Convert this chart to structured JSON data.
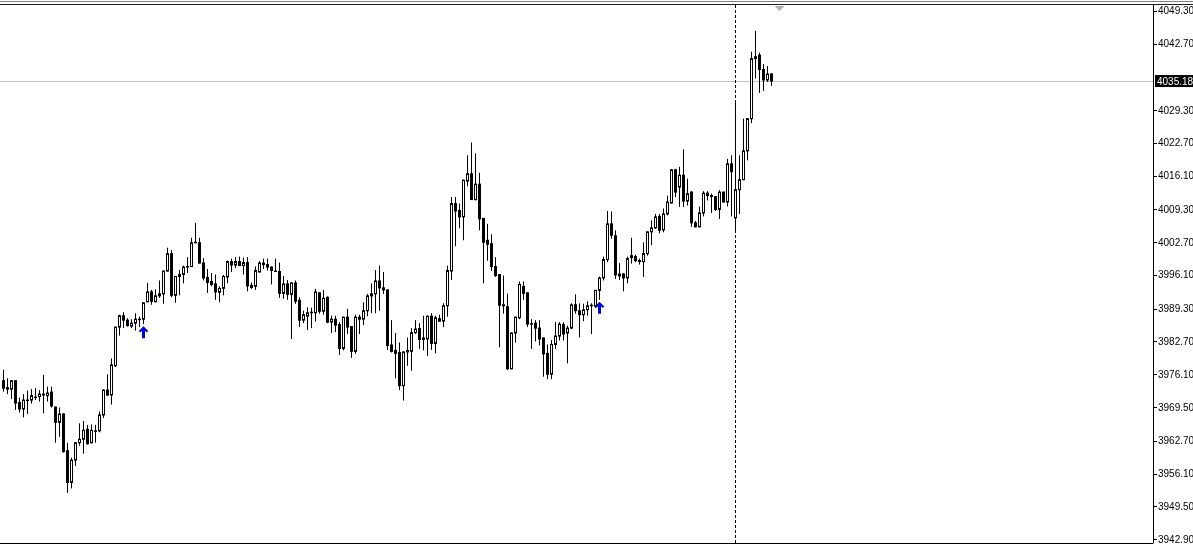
{
  "chart_data": {
    "type": "candlestick",
    "categories": [
      null,
      null,
      null,
      null,
      null,
      null,
      null,
      null,
      null,
      null,
      null,
      null,
      null,
      null,
      null,
      null,
      null,
      null,
      null,
      null,
      null,
      null,
      null,
      null,
      null,
      null,
      null,
      null,
      null,
      null,
      null,
      null,
      null,
      null,
      null,
      null,
      null,
      null,
      null,
      null,
      null,
      null,
      null,
      null,
      null,
      null,
      null,
      null,
      null,
      null,
      null,
      null,
      null,
      null,
      null,
      null,
      null,
      null,
      null,
      null,
      null,
      null,
      null,
      null,
      null,
      null,
      null,
      null,
      null,
      null,
      null,
      null,
      null,
      null,
      null,
      null,
      null,
      null,
      null,
      null,
      null,
      null,
      null,
      null,
      null,
      null,
      null,
      null,
      null,
      null,
      null,
      null,
      null,
      null,
      null,
      null,
      null,
      null,
      null,
      null,
      null,
      null,
      null,
      null,
      null,
      null,
      null,
      null,
      null,
      null,
      null,
      null,
      null,
      null,
      null,
      null,
      null,
      null,
      null,
      null,
      null,
      null,
      null,
      null,
      null,
      null,
      null,
      null,
      null,
      null,
      null,
      null,
      null,
      null,
      null,
      null,
      null,
      null,
      null,
      null,
      null,
      null,
      null,
      null,
      null,
      null,
      null,
      null,
      null,
      null,
      null,
      null,
      null,
      null,
      null,
      null,
      null,
      null,
      null,
      null,
      null,
      null,
      null,
      null,
      null,
      null,
      null,
      null,
      null,
      null,
      null,
      null,
      null,
      null,
      null,
      null,
      null,
      null,
      null,
      null,
      null,
      null,
      null,
      null,
      null,
      null,
      null,
      null,
      null,
      null,
      null,
      null,
      null,
      null,
      null,
      null,
      null,
      null,
      null,
      null,
      null,
      null,
      null,
      null,
      null,
      null,
      null,
      null,
      null,
      null,
      null,
      null,
      null,
      null,
      null,
      null,
      null,
      null,
      null,
      null,
      null,
      null,
      null,
      null,
      null,
      null,
      null,
      null,
      null,
      null,
      null,
      null,
      null,
      null,
      null,
      null,
      null,
      null,
      null,
      null,
      null,
      null,
      null,
      null,
      null,
      null,
      null,
      null,
      null,
      null,
      null,
      null,
      null,
      null,
      null,
      null,
      null,
      null,
      null,
      null,
      null,
      null,
      null,
      null,
      null,
      null,
      null,
      null,
      null,
      null,
      null,
      null,
      null,
      null,
      null,
      null,
      null,
      null,
      null,
      null,
      null,
      null,
      null,
      null,
      null,
      null,
      null,
      null
    ],
    "ohlc": [
      [
        3974.8,
        3977.0,
        3972.6,
        3973.3
      ],
      [
        3973.4,
        3975.3,
        3972.1,
        3973.1
      ],
      [
        3973.1,
        3974.9,
        3971.1,
        3974.8
      ],
      [
        3974.8,
        3974.9,
        3968.9,
        3970.3
      ],
      [
        3970.4,
        3971.4,
        3968.4,
        3969.1
      ],
      [
        3969.1,
        3972.1,
        3967.4,
        3970.9
      ],
      [
        3970.8,
        3972.8,
        3968.1,
        3970.9
      ],
      [
        3970.9,
        3973.1,
        3970.2,
        3971.8
      ],
      [
        3971.5,
        3973.3,
        3970.9,
        3971.4
      ],
      [
        3971.6,
        3972.9,
        3970.6,
        3972.1
      ],
      [
        3971.9,
        3976.0,
        3968.2,
        3972.1
      ],
      [
        3971.8,
        3973.6,
        3970.6,
        3972.3
      ],
      [
        3972.5,
        3973.6,
        3969.4,
        3969.7
      ],
      [
        3969.5,
        3969.6,
        3962.3,
        3966.4
      ],
      [
        3966.4,
        3969.4,
        3963.5,
        3968.1
      ],
      [
        3968.1,
        3968.2,
        3960.3,
        3960.5
      ],
      [
        3960.7,
        3962.3,
        3952.2,
        3954.3
      ],
      [
        3954.3,
        3959.3,
        3953.1,
        3958.8
      ],
      [
        3958.8,
        3962.4,
        3957.6,
        3962.3
      ],
      [
        3962.3,
        3966.2,
        3961.7,
        3963.0
      ],
      [
        3963.0,
        3966.7,
        3960.1,
        3964.8
      ],
      [
        3965.0,
        3965.9,
        3961.9,
        3962.1
      ],
      [
        3962.3,
        3966.0,
        3962.2,
        3964.8
      ],
      [
        3964.6,
        3965.9,
        3962.3,
        3964.7
      ],
      [
        3964.7,
        3968.6,
        3964.4,
        3967.9
      ],
      [
        3967.9,
        3973.1,
        3967.3,
        3972.9
      ],
      [
        3972.9,
        3976.1,
        3971.8,
        3971.9
      ],
      [
        3971.9,
        3979.3,
        3970.0,
        3978.0
      ],
      [
        3977.8,
        3985.7,
        3977.6,
        3985.6
      ],
      [
        3985.6,
        3988.1,
        3983.9,
        3987.9
      ],
      [
        3987.9,
        3988.6,
        3985.4,
        3987.0
      ],
      [
        3987.0,
        3987.4,
        3985.7,
        3985.9
      ],
      [
        3985.8,
        3987.2,
        3985.4,
        3986.4
      ],
      [
        3986.4,
        3988.4,
        3984.9,
        3987.2
      ],
      [
        3987.1,
        3987.7,
        3985.6,
        3987.2
      ],
      [
        3987.2,
        3990.6,
        3986.2,
        3990.5
      ],
      [
        3990.7,
        3994.5,
        3990.6,
        3992.7
      ],
      [
        3992.7,
        3993.1,
        3990.1,
        3990.8
      ],
      [
        3990.7,
        3993.2,
        3990.6,
        3991.9
      ],
      [
        3991.9,
        3995.0,
        3991.5,
        3992.3
      ],
      [
        3992.3,
        3997.0,
        3990.3,
        3996.9
      ],
      [
        3996.9,
        4001.6,
        3996.8,
        4000.4
      ],
      [
        4000.4,
        4001.1,
        3991.6,
        3992.0
      ],
      [
        3992.0,
        3995.9,
        3990.5,
        3995.8
      ],
      [
        3995.8,
        3997.1,
        3992.0,
        3996.2
      ],
      [
        3996.2,
        3998.0,
        3994.4,
        3997.7
      ],
      [
        3997.7,
        3999.7,
        3996.5,
        3997.8
      ],
      [
        3997.8,
        4003.6,
        3997.7,
        4002.6
      ],
      [
        4002.6,
        4006.6,
        4002.5,
        4002.7
      ],
      [
        4002.6,
        4003.6,
        3998.4,
        3998.5
      ],
      [
        3998.5,
        3999.5,
        3995.0,
        3995.5
      ],
      [
        3995.6,
        3997.3,
        3992.5,
        3994.6
      ],
      [
        3994.8,
        3996.5,
        3993.8,
        3994.2
      ],
      [
        3994.3,
        3996.2,
        3991.1,
        3992.7
      ],
      [
        3992.6,
        3993.8,
        3990.6,
        3993.4
      ],
      [
        3993.4,
        3996.1,
        3992.0,
        3995.8
      ],
      [
        3995.7,
        3999.0,
        3994.4,
        3998.8
      ],
      [
        3998.8,
        3999.4,
        3996.7,
        3998.1
      ],
      [
        3998.1,
        3999.7,
        3997.5,
        3998.8
      ],
      [
        3998.8,
        3999.8,
        3997.9,
        3998.0
      ],
      [
        3998.0,
        3999.6,
        3996.2,
        3998.6
      ],
      [
        3998.6,
        3999.7,
        3992.8,
        3993.9
      ],
      [
        3994.0,
        3994.6,
        3993.3,
        3993.6
      ],
      [
        3993.8,
        3997.8,
        3993.1,
        3997.0
      ],
      [
        3996.7,
        3998.9,
        3996.6,
        3998.5
      ],
      [
        3998.2,
        3999.4,
        3997.3,
        3998.5
      ],
      [
        3998.2,
        3999.4,
        3997.0,
        3997.7
      ],
      [
        3997.7,
        3997.8,
        3994.2,
        3997.0
      ],
      [
        3996.8,
        3999.4,
        3996.7,
        3996.9
      ],
      [
        3996.8,
        3998.6,
        3991.5,
        3992.4
      ],
      [
        3992.4,
        3995.9,
        3991.3,
        3994.3
      ],
      [
        3994.3,
        3995.1,
        3991.1,
        3992.2
      ],
      [
        3992.2,
        3994.6,
        3983.2,
        3994.5
      ],
      [
        3994.5,
        3995.0,
        3990.3,
        3990.8
      ],
      [
        3991.0,
        3991.6,
        3985.6,
        3987.0
      ],
      [
        3987.0,
        3988.9,
        3986.4,
        3988.1
      ],
      [
        3987.8,
        3989.6,
        3985.0,
        3988.5
      ],
      [
        3988.5,
        3989.5,
        3985.4,
        3988.6
      ],
      [
        3988.5,
        3993.3,
        3986.7,
        3992.7
      ],
      [
        3992.5,
        3992.6,
        3988.3,
        3988.8
      ],
      [
        3988.8,
        3993.1,
        3988.1,
        3991.4
      ],
      [
        3991.6,
        3991.8,
        3986.4,
        3986.6
      ],
      [
        3986.6,
        3987.9,
        3984.4,
        3987.2
      ],
      [
        3987.2,
        3987.9,
        3984.6,
        3986.0
      ],
      [
        3986.1,
        3986.6,
        3980.0,
        3981.3
      ],
      [
        3981.3,
        3987.7,
        3980.9,
        3987.6
      ],
      [
        3987.6,
        3989.3,
        3984.2,
        3985.6
      ],
      [
        3985.7,
        3985.8,
        3979.4,
        3980.7
      ],
      [
        3980.7,
        3988.1,
        3980.2,
        3987.6
      ],
      [
        3987.6,
        3988.1,
        3984.2,
        3987.2
      ],
      [
        3987.2,
        3990.6,
        3986.0,
        3988.9
      ],
      [
        3988.9,
        3992.3,
        3987.8,
        3991.9
      ],
      [
        3991.9,
        3994.4,
        3988.4,
        3992.3
      ],
      [
        3992.3,
        3997.1,
        3988.4,
        3994.9
      ],
      [
        3994.9,
        3998.0,
        3988.9,
        3993.5
      ],
      [
        3993.5,
        3996.7,
        3992.3,
        3993.1
      ],
      [
        3993.1,
        3993.2,
        3981.0,
        3981.9
      ],
      [
        3982.0,
        3987.0,
        3980.5,
        3980.7
      ],
      [
        3980.9,
        3984.4,
        3975.3,
        3980.3
      ],
      [
        3980.5,
        3982.5,
        3972.9,
        3973.8
      ],
      [
        3973.8,
        3980.7,
        3970.8,
        3980.6
      ],
      [
        3980.6,
        3983.5,
        3977.8,
        3980.9
      ],
      [
        3980.7,
        3985.4,
        3976.8,
        3984.5
      ],
      [
        3984.5,
        3987.0,
        3984.2,
        3985.2
      ],
      [
        3985.3,
        3986.4,
        3981.2,
        3983.1
      ],
      [
        3983.4,
        3987.9,
        3980.9,
        3983.1
      ],
      [
        3983.2,
        3987.9,
        3979.8,
        3987.8
      ],
      [
        3987.8,
        3988.4,
        3981.0,
        3982.3
      ],
      [
        3982.3,
        3987.9,
        3980.3,
        3987.5
      ],
      [
        3987.3,
        3988.1,
        3986.7,
        3986.8
      ],
      [
        3986.8,
        3990.4,
        3985.6,
        3989.9
      ],
      [
        3989.9,
        3998.0,
        3987.7,
        3997.0
      ],
      [
        3996.9,
        4011.8,
        3995.1,
        4010.5
      ],
      [
        4010.5,
        4011.8,
        4001.9,
        4009.0
      ],
      [
        4009.1,
        4010.5,
        4005.5,
        4007.8
      ],
      [
        4007.8,
        4015.3,
        4003.1,
        4015.2
      ],
      [
        4015.0,
        4020.2,
        4014.0,
        4016.5
      ],
      [
        4016.5,
        4022.8,
        4011.2,
        4011.3
      ],
      [
        4011.3,
        4020.6,
        4011.1,
        4014.4
      ],
      [
        4014.4,
        4016.7,
        4005.1,
        4007.4
      ],
      [
        4007.5,
        4007.6,
        3994.4,
        4002.7
      ],
      [
        4003.1,
        4006.4,
        3999.0,
        4002.3
      ],
      [
        4002.4,
        4004.3,
        3996.9,
        3997.8
      ],
      [
        3997.8,
        3999.7,
        3995.7,
        3996.0
      ],
      [
        3996.2,
        3996.3,
        3981.5,
        3990.0
      ],
      [
        3989.9,
        3996.0,
        3988.3,
        3990.1
      ],
      [
        3989.7,
        3992.3,
        3977.0,
        3977.2
      ],
      [
        3977.2,
        3984.5,
        3977.1,
        3984.4
      ],
      [
        3984.4,
        3987.7,
        3982.5,
        3987.6
      ],
      [
        3987.5,
        3994.8,
        3987.2,
        3994.2
      ],
      [
        3993.8,
        3994.8,
        3991.1,
        3992.4
      ],
      [
        3992.5,
        3992.6,
        3985.6,
        3986.2
      ],
      [
        3986.2,
        3987.2,
        3981.2,
        3986.3
      ],
      [
        3986.4,
        3987.0,
        3982.7,
        3985.4
      ],
      [
        3985.4,
        3987.0,
        3981.9,
        3983.2
      ],
      [
        3983.4,
        3983.5,
        3975.6,
        3980.2
      ],
      [
        3980.3,
        3982.1,
        3975.1,
        3976.1
      ],
      [
        3976.1,
        3983.0,
        3975.1,
        3982.1
      ],
      [
        3982.1,
        3986.6,
        3981.2,
        3983.8
      ],
      [
        3983.8,
        3986.6,
        3982.9,
        3986.2
      ],
      [
        3986.1,
        3986.6,
        3982.9,
        3984.2
      ],
      [
        3984.4,
        3985.9,
        3978.3,
        3985.4
      ],
      [
        3985.4,
        3990.4,
        3985.2,
        3990.1
      ],
      [
        3990.1,
        3992.2,
        3988.3,
        3988.9
      ],
      [
        3988.9,
        3990.4,
        3983.5,
        3988.1
      ],
      [
        3988.1,
        3990.3,
        3986.8,
        3989.1
      ],
      [
        3989.1,
        3990.8,
        3987.9,
        3989.9
      ],
      [
        3989.9,
        3990.4,
        3984.2,
        3990.0
      ],
      [
        3989.8,
        3993.1,
        3989.5,
        3993.0
      ],
      [
        3993.0,
        3995.8,
        3991.1,
        3995.5
      ],
      [
        3995.5,
        3999.8,
        3995.0,
        3999.2
      ],
      [
        3999.2,
        4009.0,
        3998.7,
        4006.4
      ],
      [
        4006.4,
        4008.9,
        4003.4,
        4004.1
      ],
      [
        4004.0,
        4005.1,
        3995.3,
        3996.1
      ],
      [
        3995.9,
        3998.5,
        3995.1,
        3996.3
      ],
      [
        3996.3,
        3996.5,
        3992.8,
        3995.5
      ],
      [
        3995.5,
        3999.8,
        3994.4,
        3999.4
      ],
      [
        3999.6,
        4003.6,
        3998.4,
        4000.0
      ],
      [
        3999.8,
        4000.2,
        3998.7,
        3999.0
      ],
      [
        3999.0,
        3999.4,
        3998.2,
        3998.8
      ],
      [
        3998.8,
        4002.7,
        3995.7,
        4000.4
      ],
      [
        4000.4,
        4004.9,
        4000.0,
        4004.8
      ],
      [
        4004.8,
        4007.1,
        4002.1,
        4005.6
      ],
      [
        4005.6,
        4008.4,
        4005.4,
        4007.8
      ],
      [
        4007.9,
        4008.4,
        4004.5,
        4005.1
      ],
      [
        4005.2,
        4009.5,
        4004.7,
        4008.4
      ],
      [
        4008.4,
        4012.1,
        4008.1,
        4010.8
      ],
      [
        4010.6,
        4017.4,
        4010.5,
        4017.3
      ],
      [
        4017.3,
        4017.5,
        4011.8,
        4012.8
      ],
      [
        4013.8,
        4017.9,
        4009.8,
        4016.2
      ],
      [
        4016.2,
        4021.4,
        4009.8,
        4011.0
      ],
      [
        4011.0,
        4015.5,
        4010.1,
        4012.5
      ],
      [
        4012.8,
        4013.0,
        4005.8,
        4006.6
      ],
      [
        4006.6,
        4007.0,
        4005.7,
        4005.8
      ],
      [
        4005.8,
        4009.9,
        4005.7,
        4008.6
      ],
      [
        4008.6,
        4013.0,
        4007.9,
        4012.6
      ],
      [
        4012.6,
        4013.0,
        4011.1,
        4012.1
      ],
      [
        4012.1,
        4012.5,
        4008.6,
        4011.9
      ],
      [
        4011.9,
        4012.0,
        4009.0,
        4009.3
      ],
      [
        4009.3,
        4013.2,
        4007.4,
        4012.8
      ],
      [
        4012.8,
        4012.9,
        4010.7,
        4010.8
      ],
      [
        4010.8,
        4019.5,
        4009.9,
        4018.5
      ],
      [
        4018.5,
        4020.2,
        4007.9,
        4016.9
      ],
      [
        4007.6,
        4031.3,
        4005.2,
        4013.3
      ],
      [
        4013.3,
        4020.2,
        4008.4,
        4015.3
      ],
      [
        4015.3,
        4027.6,
        4015.2,
        4021.1
      ],
      [
        4021.1,
        4027.7,
        4019.2,
        4027.6
      ],
      [
        4027.6,
        4041.1,
        4026.7,
        4039.7
      ],
      [
        4039.7,
        4045.3,
        4035.7,
        4040.1
      ],
      [
        4040.4,
        4040.9,
        4032.8,
        4037.5
      ],
      [
        4037.5,
        4038.6,
        4033.2,
        4035.4
      ],
      [
        4035.4,
        4038.2,
        4035.0,
        4036.6
      ],
      [
        4036.6,
        4036.8,
        4034.2,
        4035.2
      ],
      null,
      null,
      null,
      null,
      null,
      null,
      null,
      null,
      null,
      null,
      null,
      null,
      null,
      null,
      null,
      null,
      null,
      null,
      null,
      null,
      null,
      null,
      null,
      null,
      null,
      null,
      null,
      null,
      null,
      null,
      null,
      null,
      null,
      null,
      null,
      null,
      null,
      null,
      null,
      null,
      null,
      null,
      null,
      null,
      null,
      null,
      null,
      null,
      null,
      null,
      null,
      null,
      null,
      null,
      null,
      null,
      null,
      null,
      null,
      null,
      null,
      null,
      null,
      null,
      null,
      null,
      null,
      null,
      null,
      null,
      null,
      null,
      null,
      null,
      null,
      null,
      null,
      null,
      null,
      null,
      null,
      null,
      null,
      null,
      null,
      null,
      null,
      null,
      null,
      null,
      null,
      null,
      null,
      null,
      null
    ],
    "ylim": [
      3942.1,
      4050.5
    ],
    "yticks": [
      {
        "value": 4049.3,
        "label": "4049.30"
      },
      {
        "value": 4042.7,
        "label": "4042.70"
      },
      {
        "value": 4029.3,
        "label": "4029.30"
      },
      {
        "value": 4022.7,
        "label": "4022.70"
      },
      {
        "value": 4016.1,
        "label": "4016.10"
      },
      {
        "value": 4009.3,
        "label": "4009.30"
      },
      {
        "value": 4002.7,
        "label": "4002.70"
      },
      {
        "value": 3996.1,
        "label": "3996.10"
      },
      {
        "value": 3989.3,
        "label": "3989.30"
      },
      {
        "value": 3982.7,
        "label": "3982.70"
      },
      {
        "value": 3976.1,
        "label": "3976.10"
      },
      {
        "value": 3969.5,
        "label": "3969.50"
      },
      {
        "value": 3962.7,
        "label": "3962.70"
      },
      {
        "value": 3956.1,
        "label": "3956.10"
      },
      {
        "value": 3949.5,
        "label": "3949.50"
      },
      {
        "value": 3942.9,
        "label": "3942.90"
      }
    ],
    "ref_lines": [
      {
        "axis": "y",
        "value": 4035.18,
        "label": "4035.18",
        "color": "#c0c0c0"
      }
    ],
    "tick_labels": "y"
  }
}
